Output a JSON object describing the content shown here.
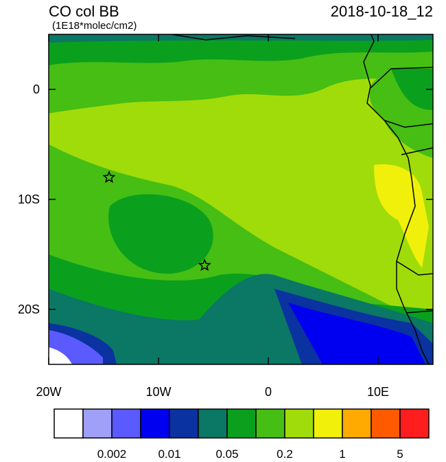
{
  "title": "CO col BB",
  "subtitle": "(1E18*molec/cm2)",
  "date": "2018-10-18_12",
  "map": {
    "xlim": [
      -20,
      15
    ],
    "ylim": [
      -25,
      5
    ],
    "xticks": [
      {
        "value": -20,
        "label": "20W"
      },
      {
        "value": -10,
        "label": "10W"
      },
      0,
      {
        "value": 10,
        "label": "10E"
      }
    ],
    "yticks": [
      0,
      {
        "value": -10,
        "label": "10S"
      },
      {
        "value": -20,
        "label": "20S"
      }
    ],
    "markers": [
      {
        "lon": -14.5,
        "lat": -8
      },
      {
        "lon": -5.8,
        "lat": -16
      }
    ]
  },
  "colorbar": {
    "colors": [
      "#ffffff",
      "#a0a0f8",
      "#5a5aff",
      "#0000f0",
      "#0a32a0",
      "#0a7864",
      "#0aa01e",
      "#46be14",
      "#a0dc0a",
      "#f0f00a",
      "#ffaa00",
      "#ff5a00",
      "#ff1e1e"
    ],
    "labels": [
      0.002,
      0.01,
      0.05,
      0.2,
      1,
      5
    ]
  }
}
